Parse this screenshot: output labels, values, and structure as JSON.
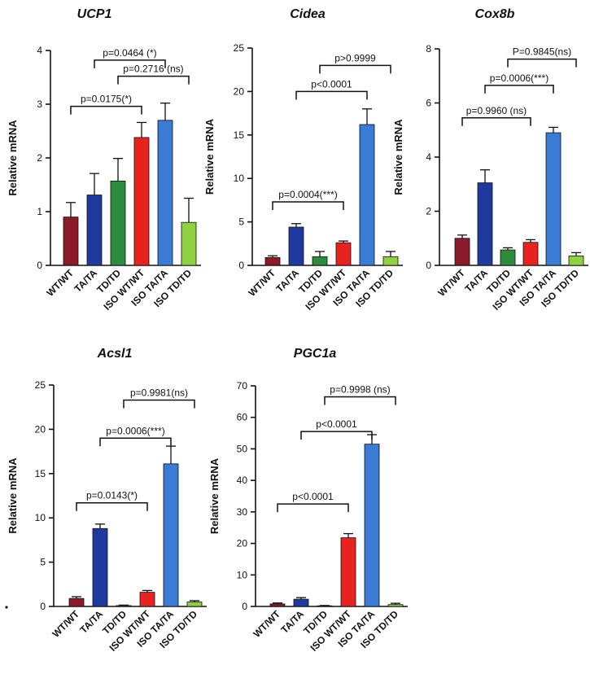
{
  "chart_data": [
    {
      "type": "bar",
      "title": "UCP1",
      "ylabel": "Relative mRNA",
      "ylim": [
        0,
        4
      ],
      "yticks": [
        0,
        1,
        2,
        3,
        4
      ],
      "categories": [
        "WT/WT",
        "TA/TA",
        "TD/TD",
        "ISO WT/WT",
        "ISO TA/TA",
        "ISO TD/TD"
      ],
      "values": [
        0.9,
        1.31,
        1.57,
        2.38,
        2.7,
        0.8
      ],
      "errors": [
        0.27,
        0.4,
        0.42,
        0.28,
        0.32,
        0.45
      ],
      "brackets": [
        {
          "from": 1,
          "to": 4,
          "y": 3.82,
          "label": "p=0.0464 (*)"
        },
        {
          "from": 2,
          "to": 5,
          "y": 3.52,
          "label": "p=0.2716 (ns)"
        },
        {
          "from": 0,
          "to": 3,
          "y": 2.96,
          "label": "p=0.0175(*)"
        }
      ]
    },
    {
      "type": "bar",
      "title": "Cidea",
      "ylabel": "Relative mRNA",
      "ylim": [
        0,
        25
      ],
      "yticks": [
        0,
        5,
        10,
        15,
        20,
        25
      ],
      "categories": [
        "WT/WT",
        "TA/TA",
        "TD/TD",
        "ISO WT/WT",
        "ISO TA/TA",
        "ISO TD/TD"
      ],
      "values": [
        0.9,
        4.4,
        1.0,
        2.6,
        16.2,
        1.0
      ],
      "errors": [
        0.2,
        0.4,
        0.6,
        0.2,
        1.8,
        0.6
      ],
      "brackets": [
        {
          "from": 2,
          "to": 5,
          "y": 23.0,
          "label": "p>0.9999"
        },
        {
          "from": 1,
          "to": 4,
          "y": 20.0,
          "label": "p<0.0001"
        },
        {
          "from": 0,
          "to": 3,
          "y": 7.3,
          "label": "p=0.0004(***)"
        }
      ]
    },
    {
      "type": "bar",
      "title": "Cox8b",
      "ylabel": "Relative mRNA",
      "ylim": [
        0,
        8
      ],
      "yticks": [
        0,
        2,
        4,
        6,
        8
      ],
      "categories": [
        "WT/WT",
        "TA/TA",
        "TD/TD",
        "ISO WT/WT",
        "ISO TA/TA",
        "ISO TD/TD"
      ],
      "values": [
        1.0,
        3.05,
        0.57,
        0.85,
        4.9,
        0.35
      ],
      "errors": [
        0.12,
        0.48,
        0.08,
        0.1,
        0.2,
        0.12
      ],
      "brackets": [
        {
          "from": 2,
          "to": 5,
          "y": 7.62,
          "label": "P=0.9845(ns)"
        },
        {
          "from": 1,
          "to": 4,
          "y": 6.65,
          "label": "p=0.0006(***)"
        },
        {
          "from": 0,
          "to": 3,
          "y": 5.45,
          "label": "p=0.9960 (ns)"
        }
      ]
    },
    {
      "type": "bar",
      "title": "Acsl1",
      "ylabel": "Relative mRNA",
      "ylim": [
        0,
        25
      ],
      "yticks": [
        0,
        5,
        10,
        15,
        20,
        25
      ],
      "categories": [
        "WT/WT",
        "TA/TA",
        "TD/TD",
        "ISO WT/WT",
        "ISO TA/TA",
        "ISO TD/TD"
      ],
      "values": [
        0.9,
        8.8,
        0.1,
        1.6,
        16.1,
        0.5
      ],
      "errors": [
        0.2,
        0.5,
        0.05,
        0.2,
        2.0,
        0.15
      ],
      "brackets": [
        {
          "from": 2,
          "to": 5,
          "y": 23.3,
          "label": "p=0.9981(ns)"
        },
        {
          "from": 1,
          "to": 4,
          "y": 19.0,
          "label": "p=0.0006(***)"
        },
        {
          "from": 0,
          "to": 3,
          "y": 11.7,
          "label": "p=0.0143(*)"
        }
      ]
    },
    {
      "type": "bar",
      "title": "PGC1a",
      "ylabel": "Relative mRNA",
      "ylim": [
        0,
        70
      ],
      "yticks": [
        0,
        10,
        20,
        30,
        40,
        50,
        60,
        70
      ],
      "categories": [
        "WT/WT",
        "TA/TA",
        "TD/TD",
        "ISO WT/WT",
        "ISO TA/TA",
        "ISO TD/TD"
      ],
      "values": [
        0.8,
        2.3,
        0.2,
        21.8,
        51.5,
        0.6
      ],
      "errors": [
        0.3,
        0.5,
        0.1,
        1.3,
        3.0,
        0.4
      ],
      "brackets": [
        {
          "from": 2,
          "to": 5,
          "y": 66.5,
          "label": "p=0.9998 (ns)"
        },
        {
          "from": 1,
          "to": 4,
          "y": 55.5,
          "label": "p<0.0001"
        },
        {
          "from": 0,
          "to": 3,
          "y": 32.5,
          "label": "p<0.0001"
        }
      ]
    }
  ],
  "colors": [
    "#8b1a2b",
    "#1f3a9e",
    "#2e8b3e",
    "#e8231f",
    "#3a7bd5",
    "#8fd13f"
  ]
}
